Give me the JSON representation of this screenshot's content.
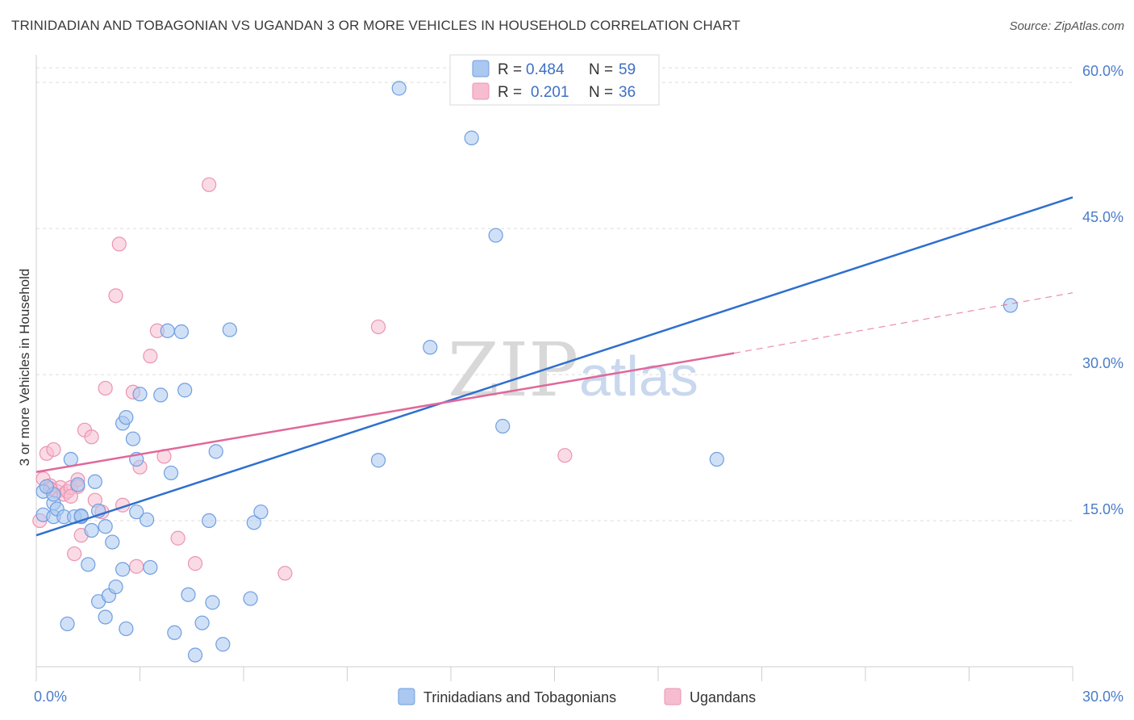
{
  "header": {
    "title": "TRINIDADIAN AND TOBAGONIAN VS UGANDAN 3 OR MORE VEHICLES IN HOUSEHOLD CORRELATION CHART",
    "source": "Source: ZipAtlas.com"
  },
  "watermark": {
    "zip": "ZIP",
    "atlas": "atlas"
  },
  "legend": {
    "r_label": "R =",
    "n_label": "N =",
    "series": [
      {
        "r": "0.484",
        "n": "59"
      },
      {
        "r": "0.201",
        "n": "36"
      }
    ]
  },
  "colors": {
    "blue_fill": "#aac8f0",
    "blue_stroke": "#6f9ee0",
    "blue_line": "#2f6fce",
    "pink_fill": "#f6bdd0",
    "pink_stroke": "#ec93b2",
    "pink_line": "#e0689a",
    "tick_label": "#4a7cc9",
    "grid": "#dcdcdc"
  },
  "chart_data": {
    "type": "scatter",
    "xlabel": "",
    "ylabel": "3 or more Vehicles in Household",
    "xlim": [
      0,
      30
    ],
    "ylim": [
      0,
      62
    ],
    "x_tick_labels": [
      {
        "value": 0,
        "label": "0.0%"
      },
      {
        "value": 30,
        "label": "30.0%"
      }
    ],
    "y_tick_labels": [
      {
        "value": 15,
        "label": "15.0%"
      },
      {
        "value": 30,
        "label": "30.0%"
      },
      {
        "value": 45,
        "label": "45.0%"
      },
      {
        "value": 60,
        "label": "60.0%"
      }
    ],
    "grid": true,
    "legend_position": "top-center",
    "series": [
      {
        "name": "Trinidadians and Tobagonians",
        "trend": {
          "x": [
            0,
            30
          ],
          "y": [
            13.5,
            48.2
          ],
          "dashed_from": null
        },
        "points": [
          [
            0.2,
            18.0
          ],
          [
            0.2,
            15.6
          ],
          [
            0.5,
            16.8
          ],
          [
            0.5,
            15.4
          ],
          [
            0.5,
            17.7
          ],
          [
            0.6,
            16.2
          ],
          [
            0.8,
            15.4
          ],
          [
            1.0,
            21.3
          ],
          [
            1.1,
            15.4
          ],
          [
            1.2,
            18.7
          ],
          [
            1.3,
            15.4
          ],
          [
            1.6,
            14.0
          ],
          [
            1.7,
            19.0
          ],
          [
            1.8,
            16.0
          ],
          [
            2.0,
            14.4
          ],
          [
            2.2,
            12.8
          ],
          [
            2.5,
            25.0
          ],
          [
            2.6,
            25.6
          ],
          [
            2.8,
            23.4
          ],
          [
            2.9,
            21.3
          ],
          [
            3.0,
            28.0
          ],
          [
            3.2,
            15.1
          ],
          [
            3.3,
            10.2
          ],
          [
            3.6,
            27.9
          ],
          [
            3.8,
            34.5
          ],
          [
            3.9,
            19.9
          ],
          [
            4.2,
            34.4
          ],
          [
            4.3,
            28.4
          ],
          [
            5.0,
            15.0
          ],
          [
            5.2,
            22.1
          ],
          [
            5.6,
            34.6
          ],
          [
            6.3,
            14.8
          ],
          [
            6.5,
            15.9
          ],
          [
            9.9,
            21.2
          ],
          [
            10.5,
            59.4
          ],
          [
            11.4,
            32.8
          ],
          [
            12.6,
            54.3
          ],
          [
            13.3,
            44.3
          ],
          [
            13.5,
            24.7
          ],
          [
            19.7,
            21.3
          ],
          [
            28.2,
            37.1
          ],
          [
            0.9,
            4.4
          ],
          [
            1.5,
            10.5
          ],
          [
            1.8,
            6.7
          ],
          [
            2.0,
            5.1
          ],
          [
            2.1,
            7.3
          ],
          [
            2.3,
            8.2
          ],
          [
            2.5,
            10.0
          ],
          [
            2.6,
            3.9
          ],
          [
            4.0,
            3.5
          ],
          [
            4.4,
            7.4
          ],
          [
            4.6,
            1.2
          ],
          [
            4.8,
            4.5
          ],
          [
            5.1,
            6.6
          ],
          [
            5.4,
            2.3
          ],
          [
            6.2,
            7.0
          ],
          [
            2.9,
            15.9
          ],
          [
            1.3,
            15.5
          ],
          [
            0.3,
            18.5
          ]
        ]
      },
      {
        "name": "Ugandans",
        "trend": {
          "x": [
            0,
            20.2
          ],
          "y": [
            20.0,
            32.2
          ],
          "dashed_from": 20.2,
          "dashed_to": [
            30,
            38.4
          ]
        },
        "points": [
          [
            0.1,
            15.0
          ],
          [
            0.2,
            19.3
          ],
          [
            0.3,
            21.9
          ],
          [
            0.4,
            18.6
          ],
          [
            0.5,
            22.3
          ],
          [
            0.6,
            18.0
          ],
          [
            0.7,
            18.4
          ],
          [
            0.8,
            17.7
          ],
          [
            0.9,
            18.0
          ],
          [
            1.0,
            18.4
          ],
          [
            1.1,
            11.6
          ],
          [
            1.2,
            19.2
          ],
          [
            1.3,
            13.5
          ],
          [
            1.4,
            24.3
          ],
          [
            1.6,
            23.6
          ],
          [
            1.7,
            17.1
          ],
          [
            1.9,
            15.9
          ],
          [
            2.0,
            28.6
          ],
          [
            2.3,
            38.1
          ],
          [
            2.4,
            43.4
          ],
          [
            2.5,
            16.6
          ],
          [
            2.8,
            28.2
          ],
          [
            2.9,
            10.3
          ],
          [
            3.0,
            20.5
          ],
          [
            3.3,
            31.9
          ],
          [
            3.5,
            34.5
          ],
          [
            3.7,
            21.6
          ],
          [
            4.1,
            13.2
          ],
          [
            4.6,
            10.6
          ],
          [
            5.0,
            49.5
          ],
          [
            7.2,
            9.6
          ],
          [
            9.9,
            34.9
          ],
          [
            15.3,
            21.7
          ],
          [
            0.4,
            18.3
          ],
          [
            1.2,
            18.5
          ],
          [
            1.0,
            17.5
          ]
        ]
      }
    ]
  },
  "bottom_legend": {
    "items": [
      {
        "label": "Trinidadians and Tobagonians"
      },
      {
        "label": "Ugandans"
      }
    ]
  }
}
